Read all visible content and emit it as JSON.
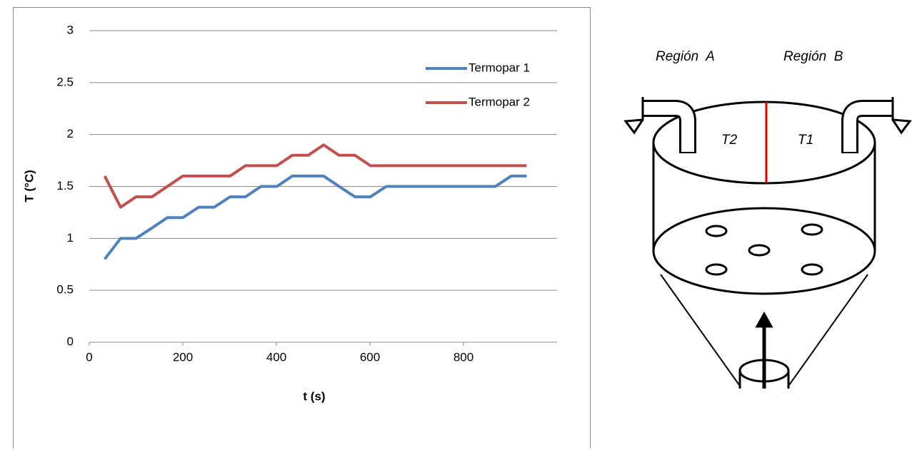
{
  "chart_data": {
    "type": "line",
    "x": [
      33,
      67,
      100,
      134,
      167,
      200,
      234,
      267,
      301,
      334,
      367,
      401,
      434,
      468,
      501,
      534,
      568,
      601,
      635,
      668,
      701,
      735,
      768,
      802,
      835,
      868,
      902,
      935
    ],
    "series": [
      {
        "name": "Termopar 1",
        "color": "#4f81bd",
        "values": [
          0.8,
          1.0,
          1.0,
          1.1,
          1.2,
          1.2,
          1.3,
          1.3,
          1.4,
          1.4,
          1.5,
          1.5,
          1.6,
          1.6,
          1.6,
          1.5,
          1.4,
          1.4,
          1.5,
          1.5,
          1.5,
          1.5,
          1.5,
          1.5,
          1.5,
          1.5,
          1.6,
          1.6
        ]
      },
      {
        "name": "Termopar 2",
        "color": "#c0504d",
        "values": [
          1.6,
          1.3,
          1.4,
          1.4,
          1.5,
          1.6,
          1.6,
          1.6,
          1.6,
          1.7,
          1.7,
          1.7,
          1.8,
          1.8,
          1.9,
          1.8,
          1.8,
          1.7,
          1.7,
          1.7,
          1.7,
          1.7,
          1.7,
          1.7,
          1.7,
          1.7,
          1.7,
          1.7
        ]
      }
    ],
    "xlabel": "t (s)",
    "ylabel": "T (°C)",
    "xlim": [
      0,
      1000
    ],
    "xticks": [
      0,
      200,
      400,
      600,
      800
    ],
    "ylim": [
      0,
      3
    ],
    "yticks": [
      0,
      0.5,
      1,
      1.5,
      2,
      2.5,
      3
    ],
    "grid": true,
    "legend": "upper right"
  },
  "diagram": {
    "labels": [
      "Región  A",
      "Región  B",
      "T2",
      "T1"
    ]
  }
}
